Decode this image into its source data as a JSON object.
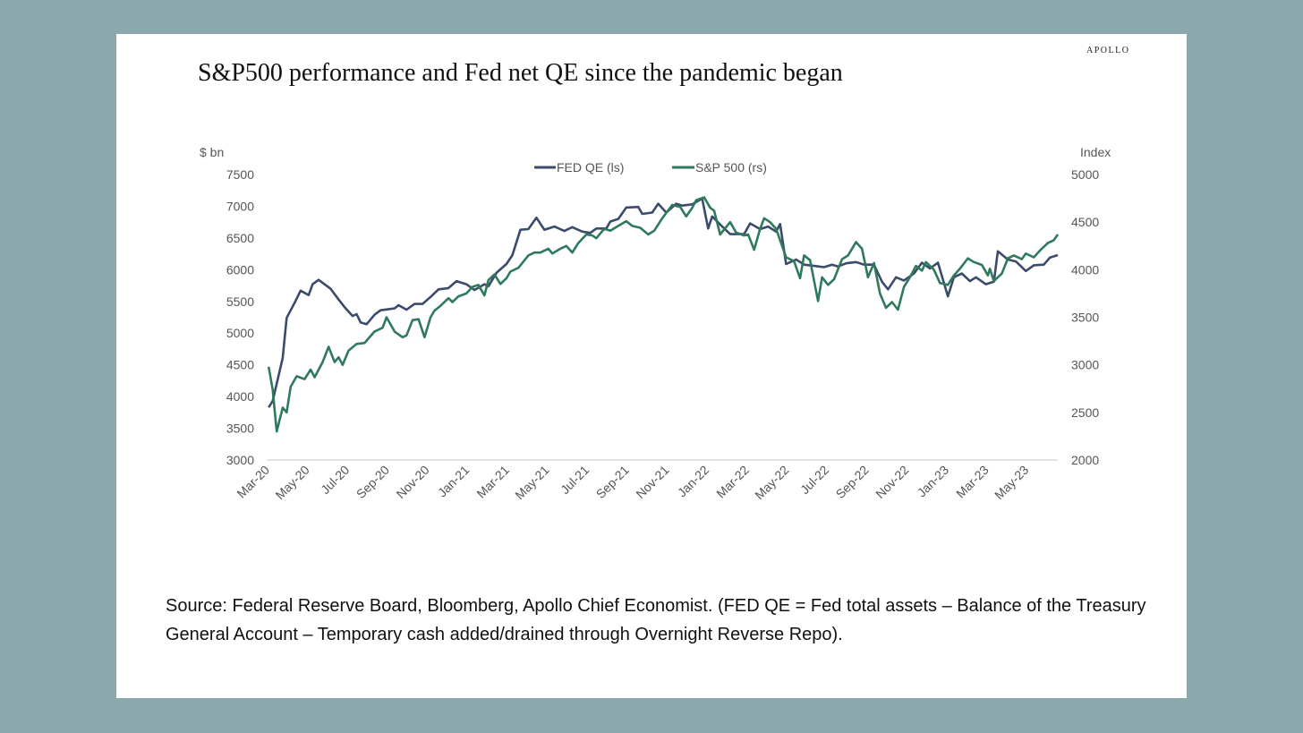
{
  "logo": "APOLLO",
  "title": "S&P500 performance and Fed net QE since the pandemic began",
  "source": "Source: Federal Reserve Board, Bloomberg, Apollo Chief Economist. (FED QE = Fed total assets – Balance of the Treasury General Account – Temporary cash added/drained through Overnight Reverse Repo).",
  "colors": {
    "fed": "#3b4b6b",
    "spx": "#2f7a5c",
    "background": "#8ba9ad"
  },
  "chart_data": {
    "type": "line",
    "title": "S&P500 performance and Fed net QE since the pandemic began",
    "ylabel_left": "$ bn",
    "ylabel_right": "Index",
    "x_unit": "months since Mar-20",
    "categories": [
      "Mar-20",
      "May-20",
      "Jul-20",
      "Sep-20",
      "Nov-20",
      "Jan-21",
      "Mar-21",
      "May-21",
      "Jul-21",
      "Sep-21",
      "Nov-21",
      "Jan-22",
      "Mar-22",
      "May-22",
      "Jul-22",
      "Sep-22",
      "Nov-22",
      "Jan-23",
      "Mar-23",
      "May-23"
    ],
    "category_x": [
      0,
      2,
      4,
      6,
      8,
      10,
      12,
      14,
      16,
      18,
      20,
      22,
      24,
      26,
      28,
      30,
      32,
      34,
      36,
      38
    ],
    "xlim": [
      0,
      39.6
    ],
    "ylim_left": [
      3000,
      7500
    ],
    "ylim_right": [
      2000,
      5000
    ],
    "yticks_left": [
      3000,
      3500,
      4000,
      4500,
      5000,
      5500,
      6000,
      6500,
      7000,
      7500
    ],
    "yticks_right": [
      2000,
      2500,
      3000,
      3500,
      4000,
      4500,
      5000
    ],
    "legend_position": "top-center",
    "grid": false,
    "series": [
      {
        "name": "FED QE (ls)",
        "axis": "left",
        "x": [
          0.1,
          0.3,
          0.8,
          1.0,
          1.4,
          1.7,
          2.1,
          2.3,
          2.6,
          3.2,
          3.6,
          3.9,
          4.3,
          4.5,
          4.7,
          5.0,
          5.4,
          5.7,
          6.4,
          6.6,
          7.0,
          7.4,
          7.8,
          8.2,
          8.6,
          9.1,
          9.5,
          10.0,
          10.4,
          10.9,
          11.1,
          11.5,
          12.0,
          12.3,
          12.7,
          13.1,
          13.5,
          13.9,
          14.4,
          14.9,
          15.3,
          15.8,
          16.2,
          16.5,
          17.0,
          17.2,
          17.6,
          18.0,
          18.6,
          18.8,
          19.3,
          19.6,
          20.0,
          20.5,
          20.8,
          21.3,
          21.8,
          22.1,
          22.3,
          22.8,
          23.2,
          23.9,
          24.2,
          24.7,
          25.1,
          25.5,
          25.7,
          26.0,
          26.5,
          26.9,
          27.4,
          27.9,
          28.3,
          28.6,
          29.0,
          29.5,
          29.9,
          30.4,
          30.8,
          31.1,
          31.5,
          31.9,
          32.4,
          32.8,
          33.2,
          33.6,
          34.1,
          34.4,
          34.8,
          35.2,
          35.5,
          36.0,
          36.4,
          36.6,
          37.1,
          37.5,
          38.0,
          38.4,
          38.9,
          39.2,
          39.6
        ],
        "values": [
          3830,
          3930,
          4610,
          5240,
          5480,
          5670,
          5600,
          5770,
          5840,
          5700,
          5530,
          5410,
          5270,
          5300,
          5170,
          5140,
          5290,
          5360,
          5390,
          5440,
          5370,
          5460,
          5460,
          5570,
          5690,
          5710,
          5820,
          5770,
          5680,
          5770,
          5740,
          5950,
          6090,
          6230,
          6630,
          6640,
          6820,
          6630,
          6680,
          6610,
          6670,
          6600,
          6580,
          6650,
          6650,
          6760,
          6800,
          6980,
          6990,
          6880,
          6900,
          7040,
          6900,
          7040,
          7010,
          7030,
          7120,
          6650,
          6840,
          6680,
          6560,
          6560,
          6730,
          6640,
          6680,
          6600,
          6720,
          6090,
          6160,
          6080,
          6060,
          6040,
          6080,
          6050,
          6100,
          6120,
          6080,
          6080,
          5810,
          5690,
          5880,
          5830,
          5940,
          6110,
          6020,
          6110,
          5580,
          5880,
          5940,
          5820,
          5880,
          5770,
          5810,
          6290,
          6160,
          6130,
          5980,
          6070,
          6080,
          6190,
          6230
        ]
      },
      {
        "name": "S&P 500 (rs)",
        "axis": "right",
        "x": [
          0.1,
          0.3,
          0.5,
          0.8,
          1.0,
          1.2,
          1.5,
          1.9,
          2.2,
          2.4,
          2.8,
          3.1,
          3.4,
          3.6,
          3.8,
          4.1,
          4.5,
          4.9,
          5.4,
          5.8,
          6.0,
          6.4,
          6.8,
          7.0,
          7.3,
          7.6,
          7.9,
          8.2,
          8.4,
          8.7,
          9.1,
          9.3,
          9.6,
          10.0,
          10.3,
          10.6,
          10.9,
          11.1,
          11.4,
          11.7,
          12.0,
          12.2,
          12.6,
          13.1,
          13.4,
          13.7,
          14.1,
          14.3,
          14.7,
          15.0,
          15.3,
          15.6,
          16.0,
          16.3,
          16.5,
          16.9,
          17.2,
          17.6,
          18.0,
          18.3,
          18.7,
          19.1,
          19.4,
          19.8,
          20.3,
          20.7,
          21.0,
          21.3,
          21.5,
          21.9,
          22.2,
          22.4,
          22.7,
          23.2,
          23.5,
          23.9,
          24.1,
          24.4,
          24.7,
          24.9,
          25.2,
          25.5,
          26.0,
          26.4,
          26.7,
          26.9,
          27.2,
          27.6,
          27.8,
          28.1,
          28.4,
          28.8,
          29.1,
          29.5,
          29.8,
          30.1,
          30.4,
          30.7,
          31.0,
          31.3,
          31.6,
          31.9,
          32.2,
          32.5,
          32.8,
          33.0,
          33.4,
          33.7,
          34.1,
          34.4,
          34.7,
          35.1,
          35.4,
          35.8,
          36.1,
          36.2,
          36.4,
          36.8,
          37.1,
          37.4,
          37.8,
          38.0,
          38.4,
          38.7,
          39.1,
          39.4,
          39.6
        ],
        "values": [
          2980,
          2740,
          2300,
          2550,
          2500,
          2770,
          2880,
          2850,
          2950,
          2870,
          3030,
          3190,
          3030,
          3080,
          3000,
          3150,
          3220,
          3230,
          3350,
          3390,
          3500,
          3350,
          3290,
          3310,
          3470,
          3480,
          3290,
          3500,
          3570,
          3620,
          3700,
          3660,
          3720,
          3750,
          3820,
          3840,
          3730,
          3890,
          3950,
          3850,
          3910,
          3980,
          4020,
          4150,
          4180,
          4180,
          4220,
          4170,
          4220,
          4250,
          4180,
          4280,
          4370,
          4360,
          4330,
          4430,
          4410,
          4460,
          4510,
          4460,
          4440,
          4370,
          4410,
          4540,
          4680,
          4660,
          4560,
          4650,
          4730,
          4760,
          4650,
          4620,
          4370,
          4500,
          4390,
          4360,
          4370,
          4210,
          4430,
          4540,
          4500,
          4430,
          4130,
          4090,
          3910,
          4150,
          4100,
          3670,
          3920,
          3840,
          3900,
          4110,
          4150,
          4290,
          4220,
          3920,
          4070,
          3750,
          3600,
          3660,
          3580,
          3820,
          3920,
          4040,
          3990,
          4080,
          4000,
          3860,
          3840,
          3940,
          4010,
          4120,
          4080,
          4050,
          3940,
          4010,
          3880,
          3960,
          4120,
          4150,
          4110,
          4170,
          4130,
          4200,
          4280,
          4310,
          4370
        ]
      }
    ]
  }
}
